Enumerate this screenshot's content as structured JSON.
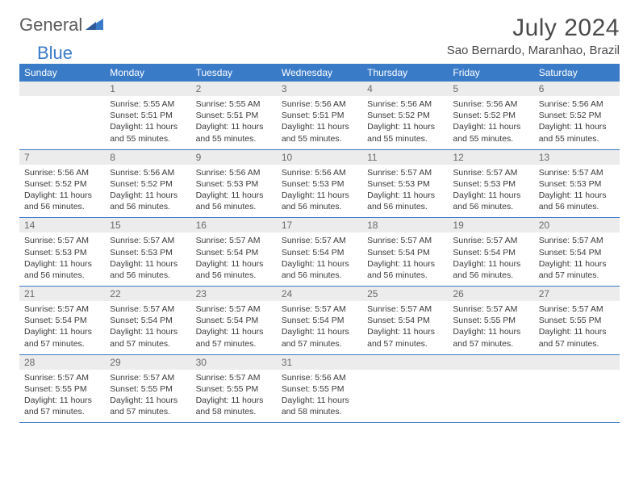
{
  "brand": {
    "part1": "General",
    "part2": "Blue"
  },
  "title": "July 2024",
  "location": "Sao Bernardo, Maranhao, Brazil",
  "colors": {
    "header_bg": "#3a7bc8",
    "header_fg": "#ffffff",
    "daynum_bg": "#ececec",
    "daynum_fg": "#6a6a6a",
    "text": "#3a3a3a",
    "rule": "#3a7bc8"
  },
  "weekdays": [
    "Sunday",
    "Monday",
    "Tuesday",
    "Wednesday",
    "Thursday",
    "Friday",
    "Saturday"
  ],
  "first_weekday_index": 1,
  "days": [
    {
      "n": 1,
      "sunrise": "5:55 AM",
      "sunset": "5:51 PM",
      "daylight": "11 hours and 55 minutes."
    },
    {
      "n": 2,
      "sunrise": "5:55 AM",
      "sunset": "5:51 PM",
      "daylight": "11 hours and 55 minutes."
    },
    {
      "n": 3,
      "sunrise": "5:56 AM",
      "sunset": "5:51 PM",
      "daylight": "11 hours and 55 minutes."
    },
    {
      "n": 4,
      "sunrise": "5:56 AM",
      "sunset": "5:52 PM",
      "daylight": "11 hours and 55 minutes."
    },
    {
      "n": 5,
      "sunrise": "5:56 AM",
      "sunset": "5:52 PM",
      "daylight": "11 hours and 55 minutes."
    },
    {
      "n": 6,
      "sunrise": "5:56 AM",
      "sunset": "5:52 PM",
      "daylight": "11 hours and 55 minutes."
    },
    {
      "n": 7,
      "sunrise": "5:56 AM",
      "sunset": "5:52 PM",
      "daylight": "11 hours and 56 minutes."
    },
    {
      "n": 8,
      "sunrise": "5:56 AM",
      "sunset": "5:52 PM",
      "daylight": "11 hours and 56 minutes."
    },
    {
      "n": 9,
      "sunrise": "5:56 AM",
      "sunset": "5:53 PM",
      "daylight": "11 hours and 56 minutes."
    },
    {
      "n": 10,
      "sunrise": "5:56 AM",
      "sunset": "5:53 PM",
      "daylight": "11 hours and 56 minutes."
    },
    {
      "n": 11,
      "sunrise": "5:57 AM",
      "sunset": "5:53 PM",
      "daylight": "11 hours and 56 minutes."
    },
    {
      "n": 12,
      "sunrise": "5:57 AM",
      "sunset": "5:53 PM",
      "daylight": "11 hours and 56 minutes."
    },
    {
      "n": 13,
      "sunrise": "5:57 AM",
      "sunset": "5:53 PM",
      "daylight": "11 hours and 56 minutes."
    },
    {
      "n": 14,
      "sunrise": "5:57 AM",
      "sunset": "5:53 PM",
      "daylight": "11 hours and 56 minutes."
    },
    {
      "n": 15,
      "sunrise": "5:57 AM",
      "sunset": "5:53 PM",
      "daylight": "11 hours and 56 minutes."
    },
    {
      "n": 16,
      "sunrise": "5:57 AM",
      "sunset": "5:54 PM",
      "daylight": "11 hours and 56 minutes."
    },
    {
      "n": 17,
      "sunrise": "5:57 AM",
      "sunset": "5:54 PM",
      "daylight": "11 hours and 56 minutes."
    },
    {
      "n": 18,
      "sunrise": "5:57 AM",
      "sunset": "5:54 PM",
      "daylight": "11 hours and 56 minutes."
    },
    {
      "n": 19,
      "sunrise": "5:57 AM",
      "sunset": "5:54 PM",
      "daylight": "11 hours and 56 minutes."
    },
    {
      "n": 20,
      "sunrise": "5:57 AM",
      "sunset": "5:54 PM",
      "daylight": "11 hours and 57 minutes."
    },
    {
      "n": 21,
      "sunrise": "5:57 AM",
      "sunset": "5:54 PM",
      "daylight": "11 hours and 57 minutes."
    },
    {
      "n": 22,
      "sunrise": "5:57 AM",
      "sunset": "5:54 PM",
      "daylight": "11 hours and 57 minutes."
    },
    {
      "n": 23,
      "sunrise": "5:57 AM",
      "sunset": "5:54 PM",
      "daylight": "11 hours and 57 minutes."
    },
    {
      "n": 24,
      "sunrise": "5:57 AM",
      "sunset": "5:54 PM",
      "daylight": "11 hours and 57 minutes."
    },
    {
      "n": 25,
      "sunrise": "5:57 AM",
      "sunset": "5:54 PM",
      "daylight": "11 hours and 57 minutes."
    },
    {
      "n": 26,
      "sunrise": "5:57 AM",
      "sunset": "5:55 PM",
      "daylight": "11 hours and 57 minutes."
    },
    {
      "n": 27,
      "sunrise": "5:57 AM",
      "sunset": "5:55 PM",
      "daylight": "11 hours and 57 minutes."
    },
    {
      "n": 28,
      "sunrise": "5:57 AM",
      "sunset": "5:55 PM",
      "daylight": "11 hours and 57 minutes."
    },
    {
      "n": 29,
      "sunrise": "5:57 AM",
      "sunset": "5:55 PM",
      "daylight": "11 hours and 57 minutes."
    },
    {
      "n": 30,
      "sunrise": "5:57 AM",
      "sunset": "5:55 PM",
      "daylight": "11 hours and 58 minutes."
    },
    {
      "n": 31,
      "sunrise": "5:56 AM",
      "sunset": "5:55 PM",
      "daylight": "11 hours and 58 minutes."
    }
  ],
  "labels": {
    "sunrise": "Sunrise:",
    "sunset": "Sunset:",
    "daylight": "Daylight:"
  }
}
